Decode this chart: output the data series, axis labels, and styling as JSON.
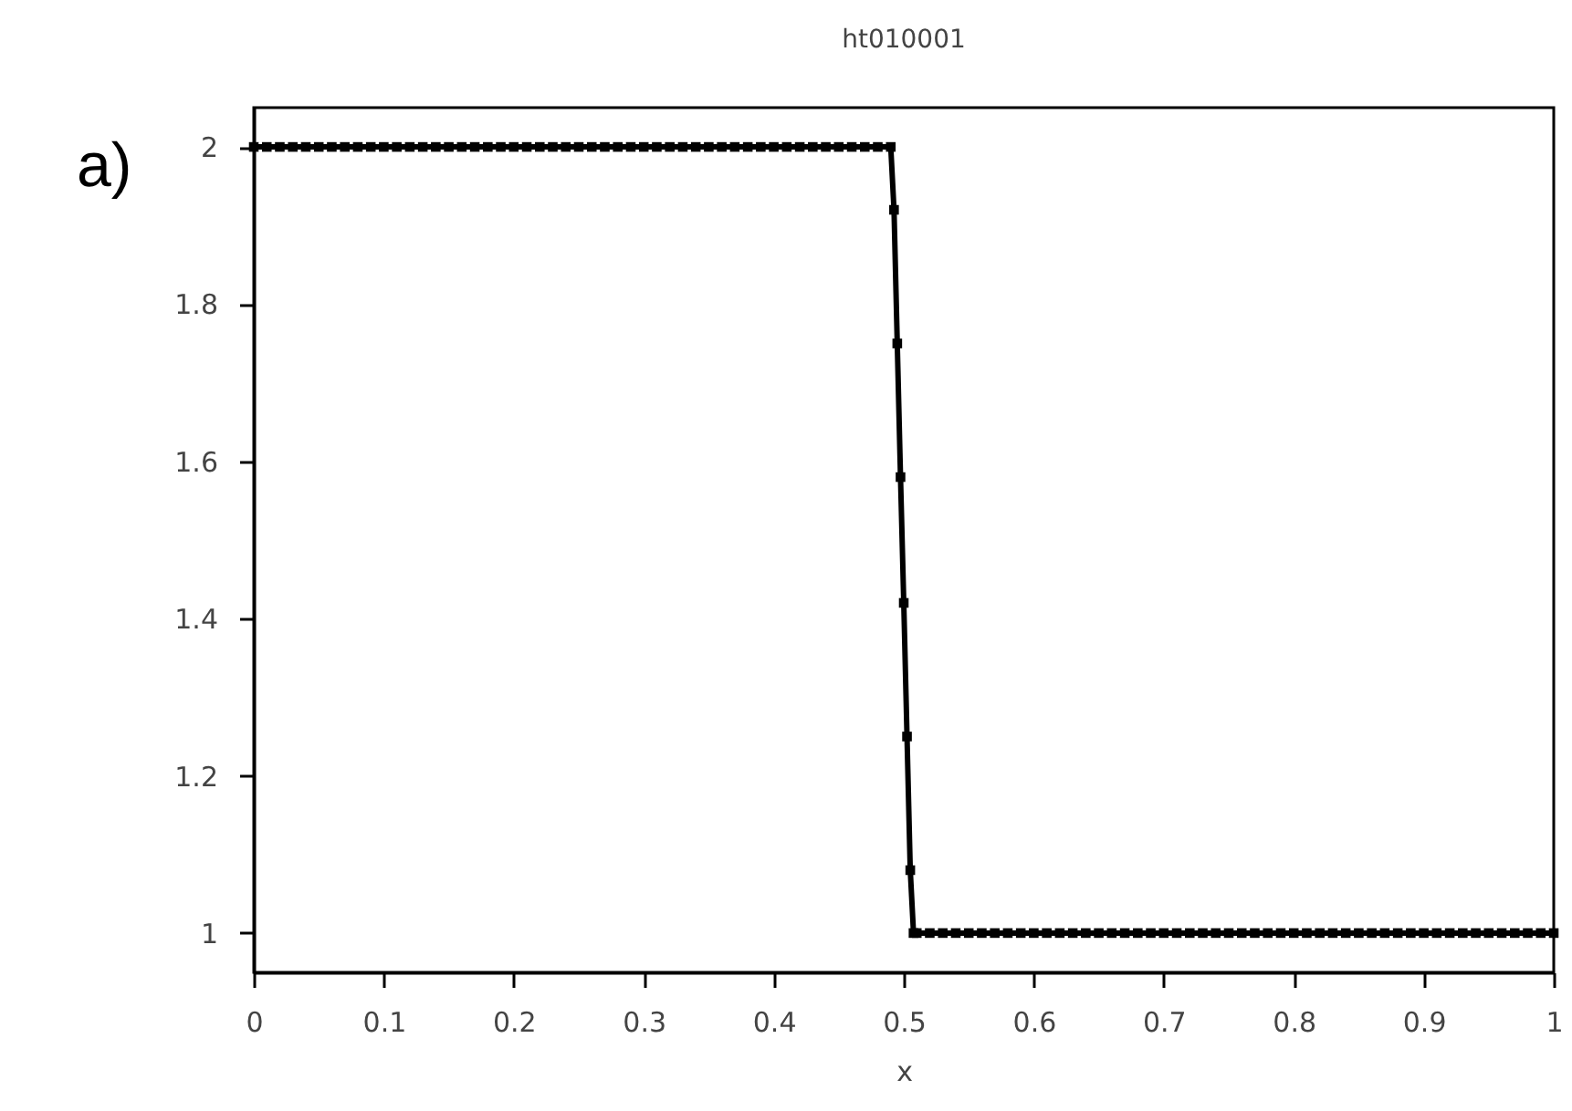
{
  "chart_data": {
    "type": "line",
    "title": "ht010001",
    "xlabel": "x",
    "annotations": [
      "a)"
    ],
    "x": [
      0,
      0.01,
      0.02,
      0.03,
      0.04,
      0.05,
      0.06,
      0.07,
      0.08,
      0.09,
      0.1,
      0.11,
      0.12,
      0.13,
      0.14,
      0.15,
      0.16,
      0.17,
      0.18,
      0.19,
      0.2,
      0.21,
      0.22,
      0.23,
      0.24,
      0.25,
      0.26,
      0.27,
      0.28,
      0.29,
      0.3,
      0.31,
      0.32,
      0.33,
      0.34,
      0.35,
      0.36,
      0.37,
      0.38,
      0.39,
      0.4,
      0.41,
      0.42,
      0.43,
      0.44,
      0.45,
      0.46,
      0.47,
      0.48,
      0.49,
      0.4925,
      0.495,
      0.4975,
      0.5,
      0.5025,
      0.505,
      0.5075,
      0.51,
      0.52,
      0.53,
      0.54,
      0.55,
      0.56,
      0.57,
      0.58,
      0.59,
      0.6,
      0.61,
      0.62,
      0.63,
      0.64,
      0.65,
      0.66,
      0.67,
      0.68,
      0.69,
      0.7,
      0.71,
      0.72,
      0.73,
      0.74,
      0.75,
      0.76,
      0.77,
      0.78,
      0.79,
      0.8,
      0.81,
      0.82,
      0.83,
      0.84,
      0.85,
      0.86,
      0.87,
      0.88,
      0.89,
      0.9,
      0.91,
      0.92,
      0.93,
      0.94,
      0.95,
      0.96,
      0.97,
      0.98,
      0.99,
      1
    ],
    "series": [
      {
        "color": "#000000",
        "values": [
          2,
          2,
          2,
          2,
          2,
          2,
          2,
          2,
          2,
          2,
          2,
          2,
          2,
          2,
          2,
          2,
          2,
          2,
          2,
          2,
          2,
          2,
          2,
          2,
          2,
          2,
          2,
          2,
          2,
          2,
          2,
          2,
          2,
          2,
          2,
          2,
          2,
          2,
          2,
          2,
          2,
          2,
          2,
          2,
          2,
          2,
          2,
          2,
          2,
          2,
          1.92,
          1.75,
          1.58,
          1.42,
          1.25,
          1.08,
          1,
          1,
          1,
          1,
          1,
          1,
          1,
          1,
          1,
          1,
          1,
          1,
          1,
          1,
          1,
          1,
          1,
          1,
          1,
          1,
          1,
          1,
          1,
          1,
          1,
          1,
          1,
          1,
          1,
          1,
          1,
          1,
          1,
          1,
          1,
          1,
          1,
          1,
          1,
          1,
          1,
          1,
          1,
          1,
          1,
          1,
          1,
          1,
          1,
          1,
          1
        ]
      }
    ],
    "xlim": [
      0,
      1
    ],
    "xticks": [
      0,
      0.1,
      0.2,
      0.3,
      0.4,
      0.5,
      0.6,
      0.7,
      0.8,
      0.9,
      1
    ],
    "ylim": [
      0.95,
      2.05
    ],
    "yticks": [
      1,
      1.2,
      1.4,
      1.6,
      1.8,
      2
    ],
    "grid": false,
    "marker": "square",
    "line_style": "solid"
  }
}
